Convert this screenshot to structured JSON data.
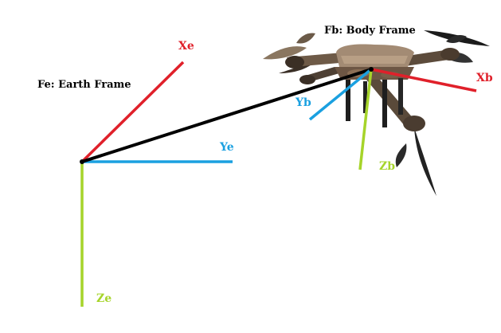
{
  "earth_frame": {
    "title": "Fe: Earth Frame",
    "axes": {
      "x": {
        "label": "Xe",
        "color": "#e0202a"
      },
      "y": {
        "label": "Ye",
        "color": "#1aa0e0"
      },
      "z": {
        "label": "Ze",
        "color": "#a6d42a"
      }
    }
  },
  "body_frame": {
    "title": "Fb: Body Frame",
    "axes": {
      "x": {
        "label": "Xb",
        "color": "#e0202a"
      },
      "y": {
        "label": "Yb",
        "color": "#1aa0e0"
      },
      "z": {
        "label": "Zb",
        "color": "#a6d42a"
      }
    }
  },
  "position_vector": {
    "color": "#000000"
  },
  "drone": {
    "name": "quadcopter-drone"
  }
}
